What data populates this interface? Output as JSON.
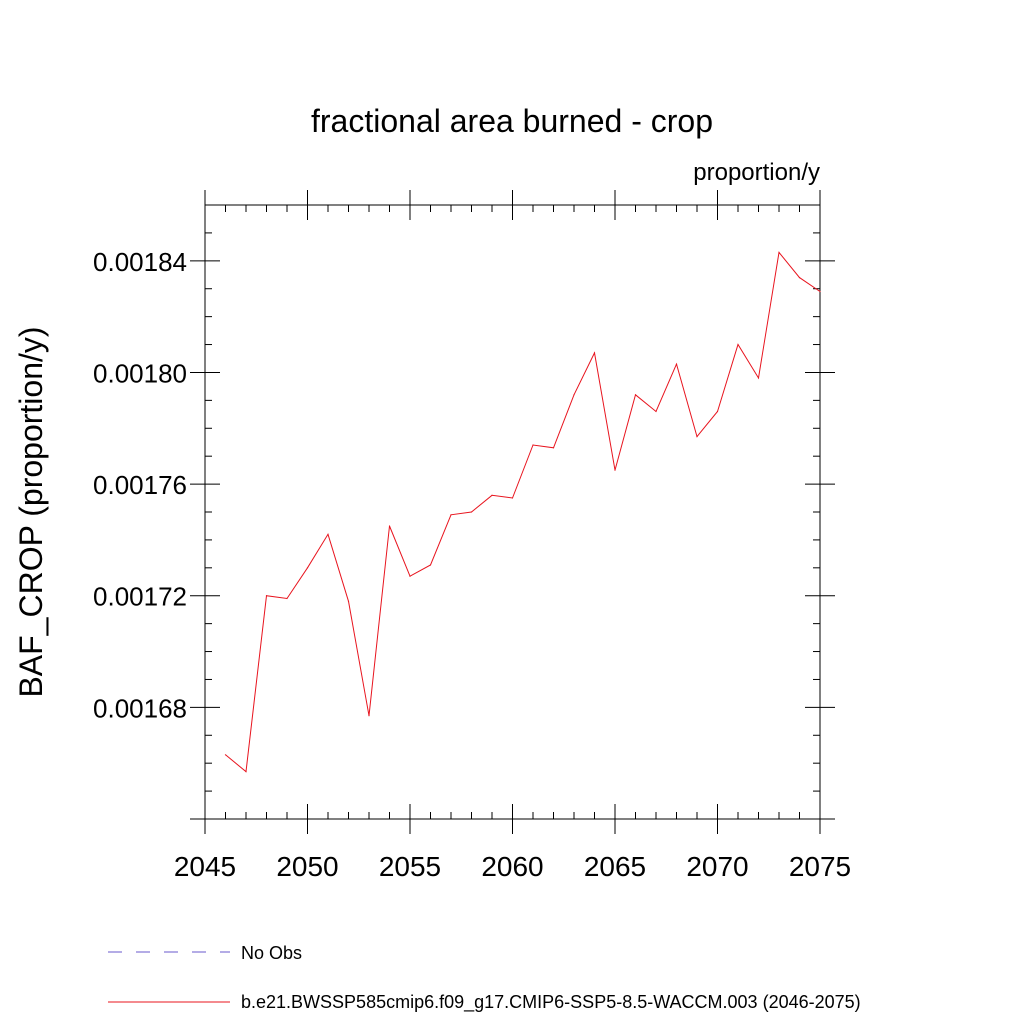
{
  "chart_data": {
    "type": "line",
    "title": "fractional area burned - crop",
    "units": "proportion/y",
    "ylabel": "BAF_CROP  (proportion/y)",
    "xlabel": "",
    "xlim": [
      2045,
      2075
    ],
    "ylim": [
      0.00164,
      0.00186
    ],
    "x_ticks": [
      2045,
      2050,
      2055,
      2060,
      2065,
      2070,
      2075
    ],
    "x_tick_labels": [
      "2045",
      "2050",
      "2055",
      "2060",
      "2065",
      "2070",
      "2075"
    ],
    "y_ticks": [
      0.00168,
      0.00172,
      0.00176,
      0.0018,
      0.00184
    ],
    "y_tick_labels": [
      "0.00168",
      "0.00172",
      "0.00176",
      "0.00180",
      "0.00184"
    ],
    "grid": false,
    "legend_position": "bottom-left",
    "series": [
      {
        "name": "b.e21.BWSSP585cmip6.f09_g17.CMIP6-SSP5-8.5-WACCM.003 (2046-2075)",
        "color": "#e8141e",
        "style": "solid",
        "x": [
          2046,
          2047,
          2048,
          2049,
          2050,
          2051,
          2052,
          2053,
          2054,
          2055,
          2056,
          2057,
          2058,
          2059,
          2060,
          2061,
          2062,
          2063,
          2064,
          2065,
          2066,
          2067,
          2068,
          2069,
          2070,
          2071,
          2072,
          2073,
          2074,
          2075
        ],
        "values": [
          0.001663,
          0.001657,
          0.00172,
          0.001719,
          0.00173,
          0.001742,
          0.001718,
          0.001677,
          0.001745,
          0.001727,
          0.001731,
          0.001749,
          0.00175,
          0.001756,
          0.001755,
          0.001774,
          0.001773,
          0.001792,
          0.001807,
          0.001765,
          0.001792,
          0.001786,
          0.001803,
          0.001777,
          0.001786,
          0.00181,
          0.001798,
          0.001843,
          0.001834,
          0.001829
        ]
      }
    ],
    "legend": [
      {
        "label": "No Obs",
        "color": "#6a5acd",
        "style": "dashed"
      },
      {
        "label": "b.e21.BWSSP585cmip6.f09_g17.CMIP6-SSP5-8.5-WACCM.003 (2046-2075)",
        "color": "#e8141e",
        "style": "solid"
      }
    ]
  }
}
